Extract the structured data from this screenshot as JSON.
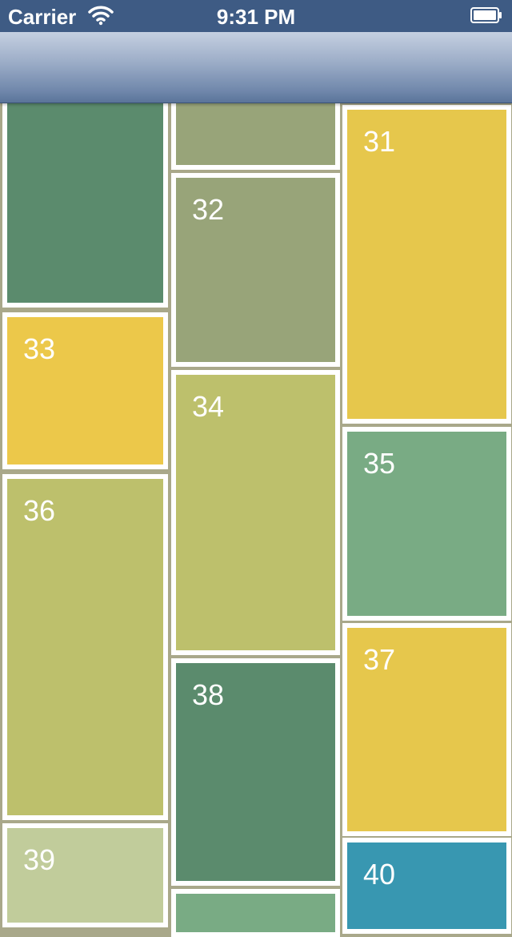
{
  "status_bar": {
    "carrier": "Carrier",
    "time": "9:31 PM",
    "wifi_icon": "wifi-icon",
    "battery_icon": "battery-icon"
  },
  "colors": {
    "background": "#a9a88a",
    "tile_border": "#ffffff",
    "dark_green": "#5b8b6d",
    "sage": "#98a479",
    "yellow": "#e6c74c",
    "yellow_alt": "#ecc84a",
    "olive": "#bdc06c",
    "medium_green": "#79ab84",
    "pale_green": "#c1cc9b",
    "teal": "#3897b1"
  },
  "tiles": [
    {
      "number": "",
      "color": "dark_green"
    },
    {
      "number": "",
      "color": "sage"
    },
    {
      "number": "31",
      "color": "yellow"
    },
    {
      "number": "32",
      "color": "sage"
    },
    {
      "number": "33",
      "color": "yellow_alt"
    },
    {
      "number": "34",
      "color": "olive"
    },
    {
      "number": "35",
      "color": "medium_green"
    },
    {
      "number": "36",
      "color": "olive"
    },
    {
      "number": "37",
      "color": "yellow"
    },
    {
      "number": "38",
      "color": "dark_green"
    },
    {
      "number": "39",
      "color": "pale_green"
    },
    {
      "number": "40",
      "color": "teal"
    },
    {
      "number": "",
      "color": "medium_green"
    }
  ]
}
